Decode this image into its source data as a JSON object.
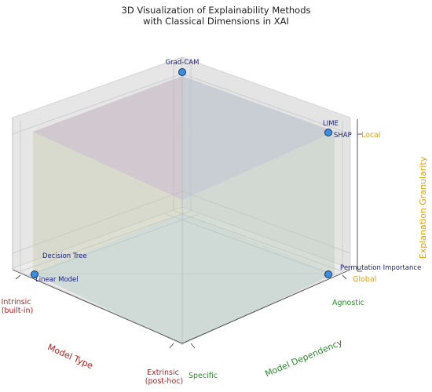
{
  "chart_data": {
    "type": "scatter",
    "title_lines": [
      "3D Visualization of Explainability Methods",
      "with Classical Dimensions in XAI"
    ],
    "x_axis": {
      "label": "Model Type",
      "ticks": [
        "Intrinsic\n(built-in)",
        "Extrinsic\n(post-hoc)"
      ],
      "color": "#b22222"
    },
    "y_axis": {
      "label": "Model Dependency",
      "ticks": [
        "Specific",
        "Agnostic"
      ],
      "color": "#2e8b2e"
    },
    "z_axis": {
      "label": "Explanation Granularity",
      "ticks": [
        "Global",
        "Local"
      ],
      "color": "#e6a117"
    },
    "grid": true,
    "points": [
      {
        "label": "Decision Tree",
        "x": 0,
        "y": 0,
        "z": 0
      },
      {
        "label": "Linear Model",
        "x": 0,
        "y": 0,
        "z": 0
      },
      {
        "label": "Permutation Importance",
        "x": 1,
        "y": 1,
        "z": 0
      },
      {
        "label": "LIME",
        "x": 1,
        "y": 1,
        "z": 1
      },
      {
        "label": "SHAP",
        "x": 1,
        "y": 1,
        "z": 1
      },
      {
        "label": "Grad-CAM",
        "x": 1,
        "y": 0,
        "z": 1
      }
    ],
    "point_color": "#3b8ede",
    "label_color": "#1a237e"
  }
}
